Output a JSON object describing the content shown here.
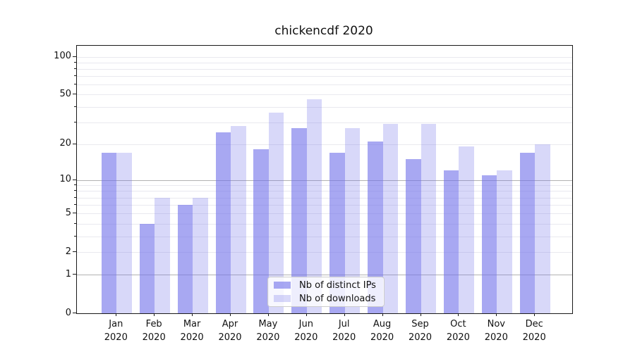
{
  "title": "chickencdf 2020",
  "legend": {
    "items": [
      {
        "label": "Nb of distinct IPs",
        "color": "rgba(110,110,233,0.6)"
      },
      {
        "label": "Nb of downloads",
        "color": "rgba(110,110,233,0.27)"
      }
    ]
  },
  "chart_data": {
    "type": "bar",
    "title": "chickencdf 2020",
    "categories": [
      "Jan 2020",
      "Feb 2020",
      "Mar 2020",
      "Apr 2020",
      "May 2020",
      "Jun 2020",
      "Jul 2020",
      "Aug 2020",
      "Sep 2020",
      "Oct 2020",
      "Nov 2020",
      "Dec 2020"
    ],
    "x_tick_lines": [
      [
        "Jan",
        "2020"
      ],
      [
        "Feb",
        "2020"
      ],
      [
        "Mar",
        "2020"
      ],
      [
        "Apr",
        "2020"
      ],
      [
        "May",
        "2020"
      ],
      [
        "Jun",
        "2020"
      ],
      [
        "Jul",
        "2020"
      ],
      [
        "Aug",
        "2020"
      ],
      [
        "Sep",
        "2020"
      ],
      [
        "Oct",
        "2020"
      ],
      [
        "Nov",
        "2020"
      ],
      [
        "Dec",
        "2020"
      ]
    ],
    "series": [
      {
        "name": "Nb of distinct IPs",
        "values": [
          17,
          4,
          6,
          25,
          18,
          27,
          17,
          21,
          15,
          12,
          11,
          17
        ],
        "color": "rgba(110,110,233,0.6)"
      },
      {
        "name": "Nb of downloads",
        "values": [
          17,
          7,
          7,
          28,
          36,
          46,
          27,
          29,
          29,
          19,
          12,
          20
        ],
        "color": "rgba(110,110,233,0.27)"
      }
    ],
    "xlabel": "",
    "ylabel": "",
    "yscale": "log1p (pixel position proportional to log10(1+value))",
    "ylim": [
      0,
      122
    ],
    "yticks": [
      0,
      1,
      2,
      5,
      10,
      20,
      50,
      100
    ],
    "major_grid_values": [
      1,
      10
    ],
    "minor_grid_values": [
      2,
      3,
      4,
      5,
      6,
      7,
      8,
      9,
      20,
      30,
      40,
      50,
      60,
      70,
      80,
      90,
      100
    ],
    "unlabeled_minor_values": [
      3,
      4,
      6,
      7,
      8,
      9,
      30,
      40,
      60,
      70,
      80,
      90
    ],
    "grid": "horizontal only",
    "legend_position": "lower center inside plot"
  },
  "colors": {
    "bar_distinct_ips": "rgba(110,110,233,0.6)",
    "bar_downloads": "rgba(110,110,233,0.27)",
    "major_grid": "#b3b3b3",
    "minor_grid": "#e9e9ef",
    "spine": "#1a1a1a",
    "text": "#111111",
    "legend_border": "#cccccc",
    "legend_bg": "rgba(255,255,255,0.8)"
  }
}
